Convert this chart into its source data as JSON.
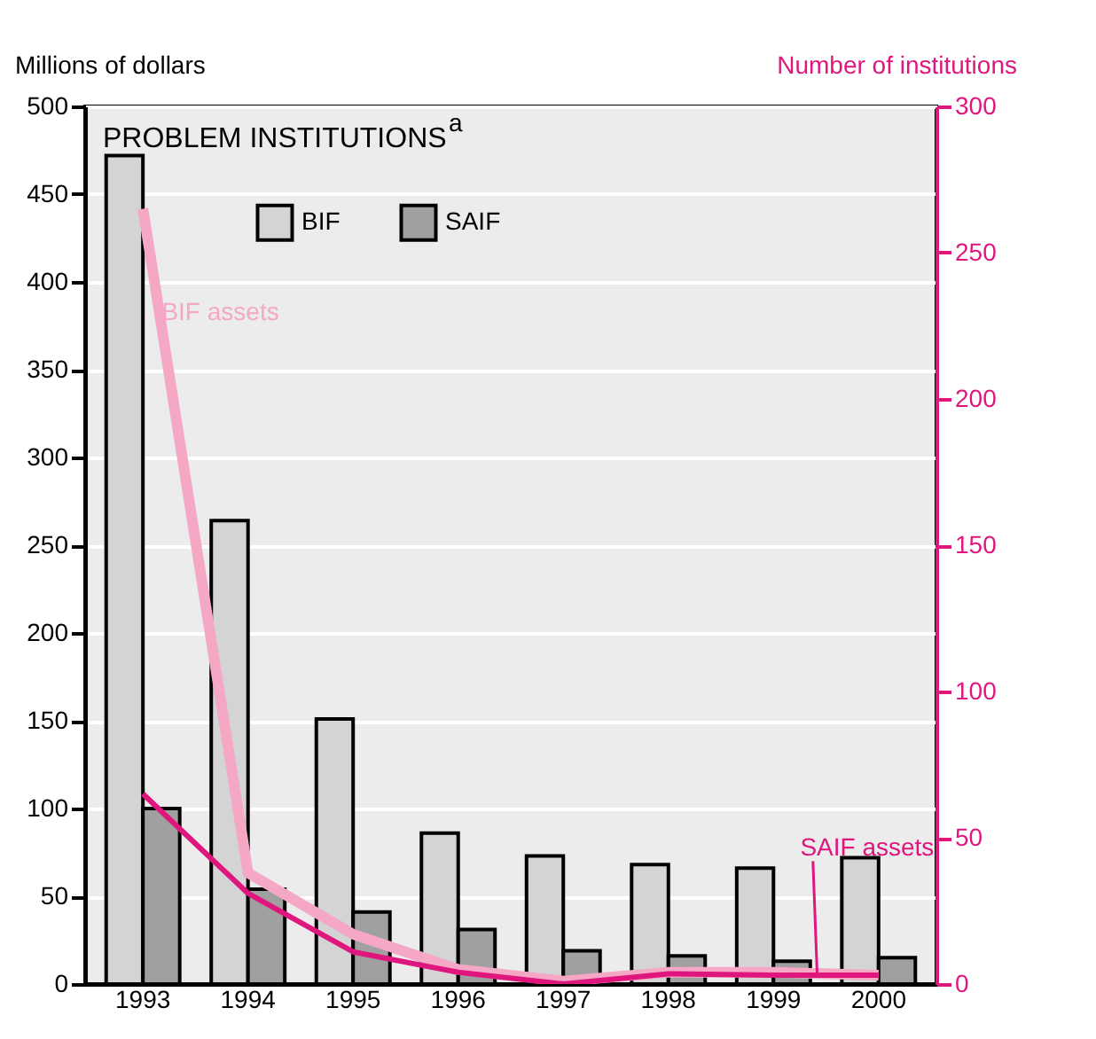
{
  "chart_data": {
    "type": "bar",
    "title": "PROBLEM INSTITUTIONS$^{a}$",
    "ylabel": "Millions of dollars",
    "y2label": "Number of institutions",
    "categories": [
      "1993",
      "1994",
      "1995",
      "1996",
      "1997",
      "1998",
      "1999",
      "2000"
    ],
    "series": [
      {
        "name": "BIF",
        "color": "#d4d4d4",
        "values": [
          472,
          264,
          151,
          86,
          73,
          68,
          66,
          72
        ]
      },
      {
        "name": "SAIF",
        "color": "#a0a0a0",
        "values": [
          100,
          54,
          41,
          31,
          19,
          16,
          13,
          15
        ]
      },
      {
        "name": "BIF assets",
        "type": "line",
        "axis": "y2",
        "color": "#f5a8c5",
        "values": [
          265,
          38,
          17,
          5,
          1,
          4,
          4,
          3
        ]
      },
      {
        "name": "SAIF assets",
        "type": "line",
        "axis": "y2",
        "color": "#e0167f",
        "values": [
          65,
          31,
          11,
          4,
          0,
          3.5,
          3,
          3
        ]
      }
    ],
    "ylim": [
      0,
      500
    ],
    "yticks": [
      0,
      50,
      100,
      150,
      200,
      250,
      300,
      350,
      400,
      450,
      500
    ],
    "y2lim": [
      0,
      300
    ],
    "y2ticks": [
      0,
      50,
      100,
      150,
      200,
      250,
      300
    ],
    "grid": "y",
    "legend": "top left"
  }
}
